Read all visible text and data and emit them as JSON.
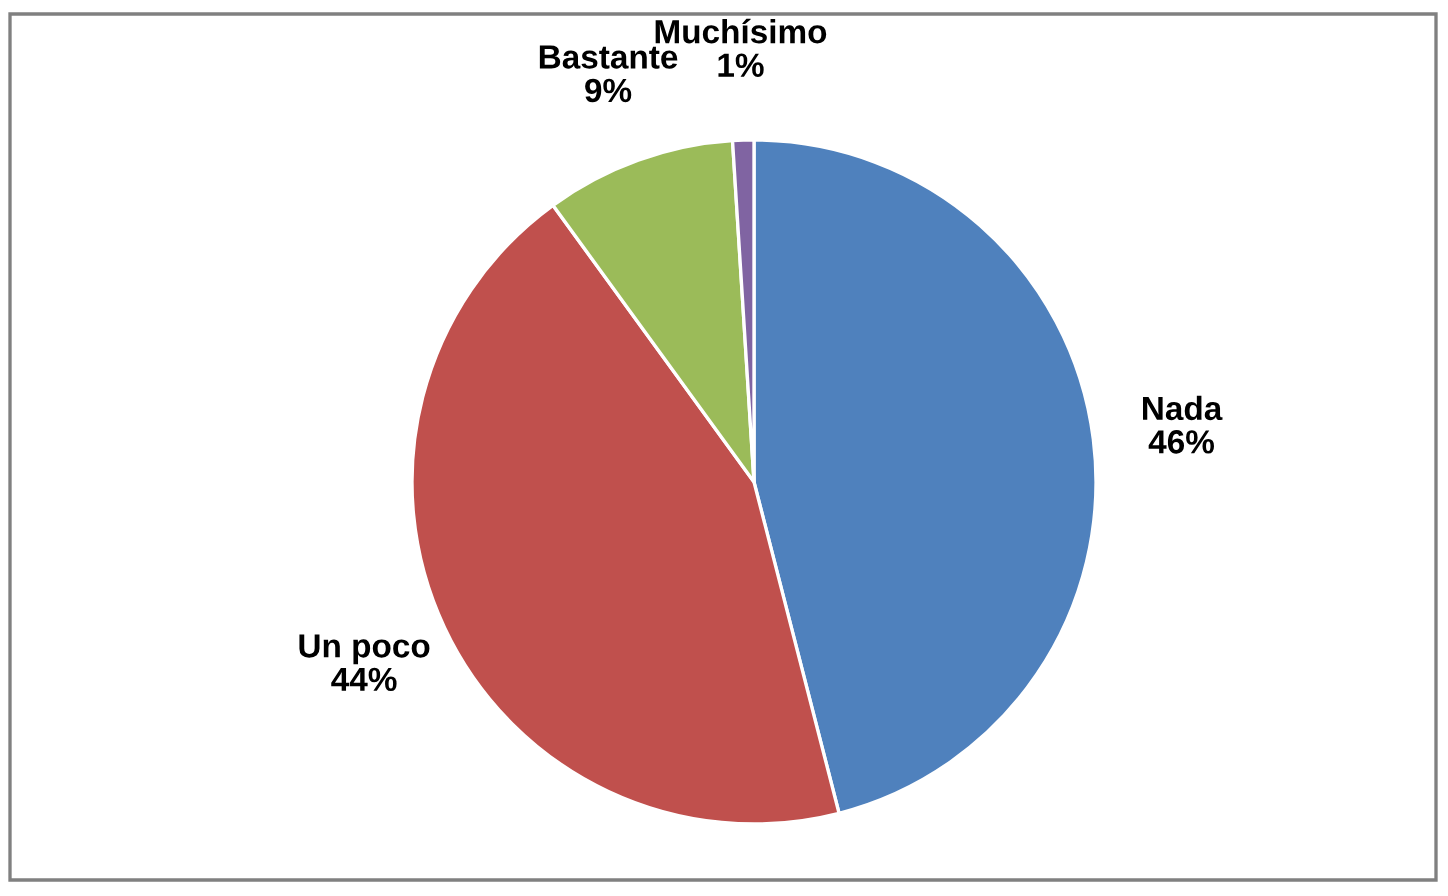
{
  "chart_data": {
    "type": "pie",
    "categories": [
      "Nada",
      "Un poco",
      "Bastante",
      "Muchísimo"
    ],
    "values": [
      46,
      44,
      9,
      1
    ],
    "colors": [
      "#4f81bd",
      "#c0504d",
      "#9bbb59",
      "#8064a2"
    ],
    "value_labels": [
      "46%",
      "44%",
      "9%",
      "1%"
    ],
    "legend": false
  }
}
